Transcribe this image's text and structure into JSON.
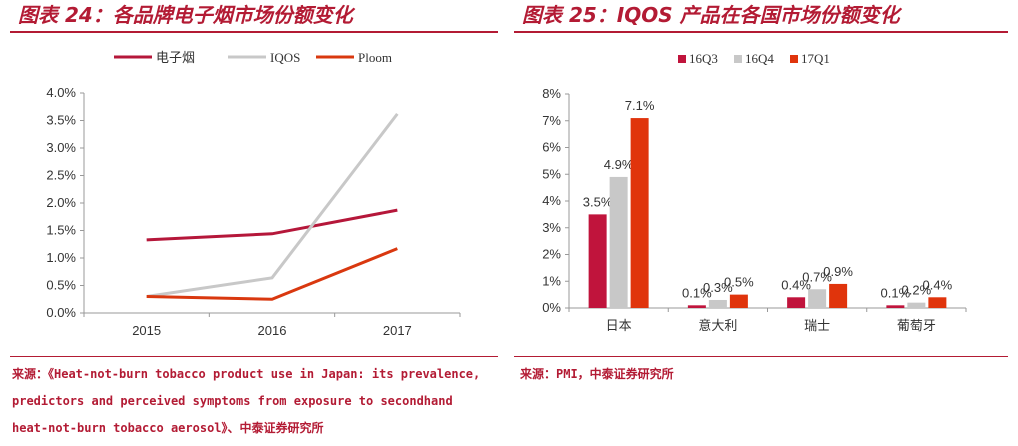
{
  "left_title": "图表 24：各品牌电子烟市场份额变化",
  "right_title": "图表 25：IQOS 产品在各国市场份额变化",
  "left_source": [
    "来源：《Heat-not-burn tobacco product use in Japan: its prevalence,",
    "predictors and perceived symptoms from exposure to secondhand",
    "heat-not-burn tobacco aerosol》、中泰证券研究所"
  ],
  "right_source": "来源：PMI，中泰证券研究所",
  "chart_data": [
    {
      "type": "line",
      "title": "",
      "x": [
        "2015",
        "2016",
        "2017"
      ],
      "series": [
        {
          "name": "电子烟",
          "values": [
            0.0133,
            0.0144,
            0.0187
          ],
          "color": "#b5173a"
        },
        {
          "name": "IQOS",
          "values": [
            0.003,
            0.0064,
            0.0362
          ],
          "color": "#c8c8c8"
        },
        {
          "name": "Ploom",
          "values": [
            0.003,
            0.0025,
            0.0117
          ],
          "color": "#d9380f"
        }
      ],
      "y_ticks": [
        "0.0%",
        "0.5%",
        "1.0%",
        "1.5%",
        "2.0%",
        "2.5%",
        "3.0%",
        "3.5%",
        "4.0%"
      ],
      "ylim": [
        0,
        0.04
      ],
      "legend_position": "top",
      "grid": false
    },
    {
      "type": "bar",
      "title": "",
      "categories": [
        "日本",
        "意大利",
        "瑞士",
        "葡萄牙"
      ],
      "series": [
        {
          "name": "16Q3",
          "values": [
            0.035,
            0.001,
            0.004,
            0.001
          ],
          "labels": [
            "3.5%",
            "0.1%",
            "0.4%",
            "0.1%"
          ],
          "color": "#c0143c"
        },
        {
          "name": "16Q4",
          "values": [
            0.049,
            0.003,
            0.007,
            0.002
          ],
          "labels": [
            "4.9%",
            "0.3%",
            "0.7%",
            "0.2%"
          ],
          "color": "#c8c8c8"
        },
        {
          "name": "17Q1",
          "values": [
            0.071,
            0.005,
            0.009,
            0.004
          ],
          "labels": [
            "7.1%",
            "0.5%",
            "0.9%",
            "0.4%"
          ],
          "color": "#e0340c"
        }
      ],
      "y_ticks": [
        "0%",
        "1%",
        "2%",
        "3%",
        "4%",
        "5%",
        "6%",
        "7%",
        "8%"
      ],
      "ylim": [
        0,
        0.08
      ],
      "legend_position": "top",
      "grid": false
    }
  ]
}
